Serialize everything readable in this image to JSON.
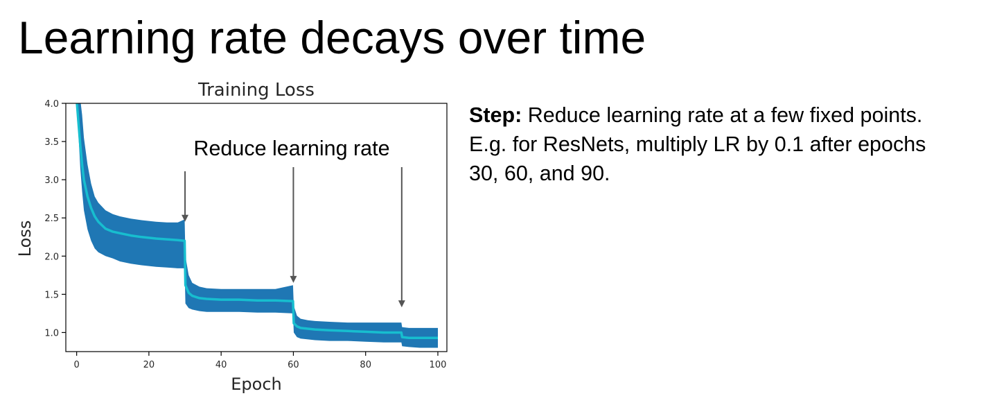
{
  "slide": {
    "title": "Learning rate decays over time",
    "description": {
      "label": "Step:",
      "text": " Reduce learning rate at a few fixed points. E.g. for ResNets, multiply LR by 0.1 after epochs 30, 60, and 90."
    }
  },
  "chart_data": {
    "type": "line",
    "title": "Training Loss",
    "xlabel": "Epoch",
    "ylabel": "Loss",
    "xlim": [
      -3,
      102.5
    ],
    "ylim": [
      0.75,
      4.0
    ],
    "xticks": [
      0,
      20,
      40,
      60,
      80,
      100
    ],
    "yticks": [
      1.0,
      1.5,
      2.0,
      2.5,
      3.0,
      3.5,
      4.0
    ],
    "ytick_labels": [
      "1.0",
      "1.5",
      "2.0",
      "2.5",
      "3.0",
      "3.5",
      "4.0"
    ],
    "grid": false,
    "annotation": {
      "text": "Reduce learning rate",
      "arrow_epochs": [
        30,
        60,
        90
      ]
    },
    "colors": {
      "band": "#1f77b4",
      "line": "#17becf",
      "arrow": "#555555",
      "axes": "#000000"
    },
    "series": [
      {
        "style": "band",
        "x": [
          0,
          0.5,
          1,
          1.5,
          2,
          3,
          4,
          5,
          6,
          8,
          10,
          12,
          15,
          18,
          20,
          22,
          25,
          28,
          29.9,
          30.1,
          31,
          32,
          34,
          36,
          40,
          45,
          50,
          55,
          59.9,
          60.1,
          61,
          62,
          64,
          66,
          70,
          75,
          80,
          85,
          89.9,
          90.1,
          92,
          95,
          98,
          100
        ],
        "lower": [
          4.05,
          3.6,
          3.15,
          2.85,
          2.6,
          2.35,
          2.2,
          2.1,
          2.05,
          2.0,
          1.97,
          1.93,
          1.9,
          1.88,
          1.87,
          1.86,
          1.85,
          1.84,
          1.84,
          1.38,
          1.32,
          1.3,
          1.28,
          1.27,
          1.27,
          1.27,
          1.26,
          1.26,
          1.25,
          1.0,
          0.94,
          0.92,
          0.91,
          0.9,
          0.89,
          0.89,
          0.88,
          0.87,
          0.87,
          0.82,
          0.81,
          0.8,
          0.8,
          0.8
        ],
        "upper": [
          4.05,
          4.05,
          4.05,
          3.85,
          3.55,
          3.2,
          2.95,
          2.78,
          2.7,
          2.6,
          2.55,
          2.52,
          2.49,
          2.47,
          2.46,
          2.45,
          2.44,
          2.44,
          2.48,
          2.0,
          1.75,
          1.65,
          1.6,
          1.58,
          1.57,
          1.57,
          1.57,
          1.57,
          1.62,
          1.35,
          1.22,
          1.18,
          1.16,
          1.15,
          1.14,
          1.13,
          1.13,
          1.13,
          1.13,
          1.07,
          1.06,
          1.06,
          1.06,
          1.06
        ]
      },
      {
        "style": "line",
        "x": [
          0,
          0.5,
          1,
          1.5,
          2,
          3,
          4,
          5,
          6,
          8,
          10,
          12,
          15,
          18,
          20,
          22,
          25,
          28,
          29.9,
          30.1,
          31,
          32,
          34,
          36,
          40,
          45,
          50,
          55,
          59.9,
          60.1,
          61,
          62,
          64,
          66,
          70,
          75,
          80,
          85,
          89.9,
          90.1,
          92,
          95,
          98,
          100
        ],
        "y": [
          4.05,
          3.75,
          3.45,
          3.2,
          3.0,
          2.78,
          2.63,
          2.52,
          2.45,
          2.36,
          2.32,
          2.3,
          2.27,
          2.25,
          2.24,
          2.23,
          2.22,
          2.21,
          2.2,
          1.62,
          1.52,
          1.48,
          1.45,
          1.44,
          1.43,
          1.43,
          1.42,
          1.42,
          1.41,
          1.12,
          1.08,
          1.06,
          1.05,
          1.04,
          1.03,
          1.02,
          1.01,
          1.0,
          1.0,
          0.94,
          0.93,
          0.93,
          0.93,
          0.93
        ]
      }
    ]
  }
}
